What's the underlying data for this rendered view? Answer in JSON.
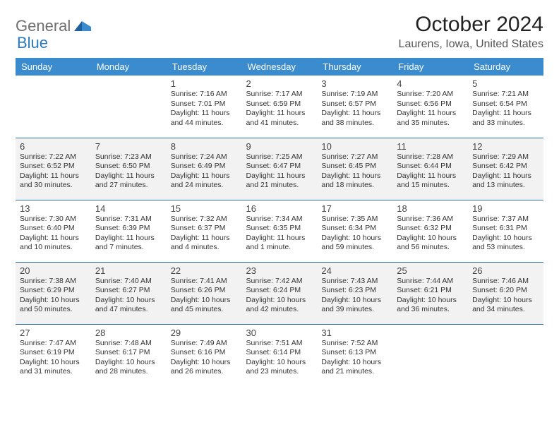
{
  "logo": {
    "general": "General",
    "blue": "Blue"
  },
  "title": "October 2024",
  "location": "Laurens, Iowa, United States",
  "header_color": "#3b8bcf",
  "border_color": "#2e6ea8",
  "alt_row_bg": "#f2f2f2",
  "day_names": [
    "Sunday",
    "Monday",
    "Tuesday",
    "Wednesday",
    "Thursday",
    "Friday",
    "Saturday"
  ],
  "weeks": [
    {
      "alt": false,
      "days": [
        null,
        null,
        {
          "n": "1",
          "sr": "7:16 AM",
          "ss": "7:01 PM",
          "dl": "11 hours and 44 minutes."
        },
        {
          "n": "2",
          "sr": "7:17 AM",
          "ss": "6:59 PM",
          "dl": "11 hours and 41 minutes."
        },
        {
          "n": "3",
          "sr": "7:19 AM",
          "ss": "6:57 PM",
          "dl": "11 hours and 38 minutes."
        },
        {
          "n": "4",
          "sr": "7:20 AM",
          "ss": "6:56 PM",
          "dl": "11 hours and 35 minutes."
        },
        {
          "n": "5",
          "sr": "7:21 AM",
          "ss": "6:54 PM",
          "dl": "11 hours and 33 minutes."
        }
      ]
    },
    {
      "alt": true,
      "days": [
        {
          "n": "6",
          "sr": "7:22 AM",
          "ss": "6:52 PM",
          "dl": "11 hours and 30 minutes."
        },
        {
          "n": "7",
          "sr": "7:23 AM",
          "ss": "6:50 PM",
          "dl": "11 hours and 27 minutes."
        },
        {
          "n": "8",
          "sr": "7:24 AM",
          "ss": "6:49 PM",
          "dl": "11 hours and 24 minutes."
        },
        {
          "n": "9",
          "sr": "7:25 AM",
          "ss": "6:47 PM",
          "dl": "11 hours and 21 minutes."
        },
        {
          "n": "10",
          "sr": "7:27 AM",
          "ss": "6:45 PM",
          "dl": "11 hours and 18 minutes."
        },
        {
          "n": "11",
          "sr": "7:28 AM",
          "ss": "6:44 PM",
          "dl": "11 hours and 15 minutes."
        },
        {
          "n": "12",
          "sr": "7:29 AM",
          "ss": "6:42 PM",
          "dl": "11 hours and 13 minutes."
        }
      ]
    },
    {
      "alt": false,
      "days": [
        {
          "n": "13",
          "sr": "7:30 AM",
          "ss": "6:40 PM",
          "dl": "11 hours and 10 minutes."
        },
        {
          "n": "14",
          "sr": "7:31 AM",
          "ss": "6:39 PM",
          "dl": "11 hours and 7 minutes."
        },
        {
          "n": "15",
          "sr": "7:32 AM",
          "ss": "6:37 PM",
          "dl": "11 hours and 4 minutes."
        },
        {
          "n": "16",
          "sr": "7:34 AM",
          "ss": "6:35 PM",
          "dl": "11 hours and 1 minute."
        },
        {
          "n": "17",
          "sr": "7:35 AM",
          "ss": "6:34 PM",
          "dl": "10 hours and 59 minutes."
        },
        {
          "n": "18",
          "sr": "7:36 AM",
          "ss": "6:32 PM",
          "dl": "10 hours and 56 minutes."
        },
        {
          "n": "19",
          "sr": "7:37 AM",
          "ss": "6:31 PM",
          "dl": "10 hours and 53 minutes."
        }
      ]
    },
    {
      "alt": true,
      "days": [
        {
          "n": "20",
          "sr": "7:38 AM",
          "ss": "6:29 PM",
          "dl": "10 hours and 50 minutes."
        },
        {
          "n": "21",
          "sr": "7:40 AM",
          "ss": "6:27 PM",
          "dl": "10 hours and 47 minutes."
        },
        {
          "n": "22",
          "sr": "7:41 AM",
          "ss": "6:26 PM",
          "dl": "10 hours and 45 minutes."
        },
        {
          "n": "23",
          "sr": "7:42 AM",
          "ss": "6:24 PM",
          "dl": "10 hours and 42 minutes."
        },
        {
          "n": "24",
          "sr": "7:43 AM",
          "ss": "6:23 PM",
          "dl": "10 hours and 39 minutes."
        },
        {
          "n": "25",
          "sr": "7:44 AM",
          "ss": "6:21 PM",
          "dl": "10 hours and 36 minutes."
        },
        {
          "n": "26",
          "sr": "7:46 AM",
          "ss": "6:20 PM",
          "dl": "10 hours and 34 minutes."
        }
      ]
    },
    {
      "alt": false,
      "days": [
        {
          "n": "27",
          "sr": "7:47 AM",
          "ss": "6:19 PM",
          "dl": "10 hours and 31 minutes."
        },
        {
          "n": "28",
          "sr": "7:48 AM",
          "ss": "6:17 PM",
          "dl": "10 hours and 28 minutes."
        },
        {
          "n": "29",
          "sr": "7:49 AM",
          "ss": "6:16 PM",
          "dl": "10 hours and 26 minutes."
        },
        {
          "n": "30",
          "sr": "7:51 AM",
          "ss": "6:14 PM",
          "dl": "10 hours and 23 minutes."
        },
        {
          "n": "31",
          "sr": "7:52 AM",
          "ss": "6:13 PM",
          "dl": "10 hours and 21 minutes."
        },
        null,
        null
      ]
    }
  ],
  "labels": {
    "sunrise": "Sunrise: ",
    "sunset": "Sunset: ",
    "daylight": "Daylight: "
  }
}
